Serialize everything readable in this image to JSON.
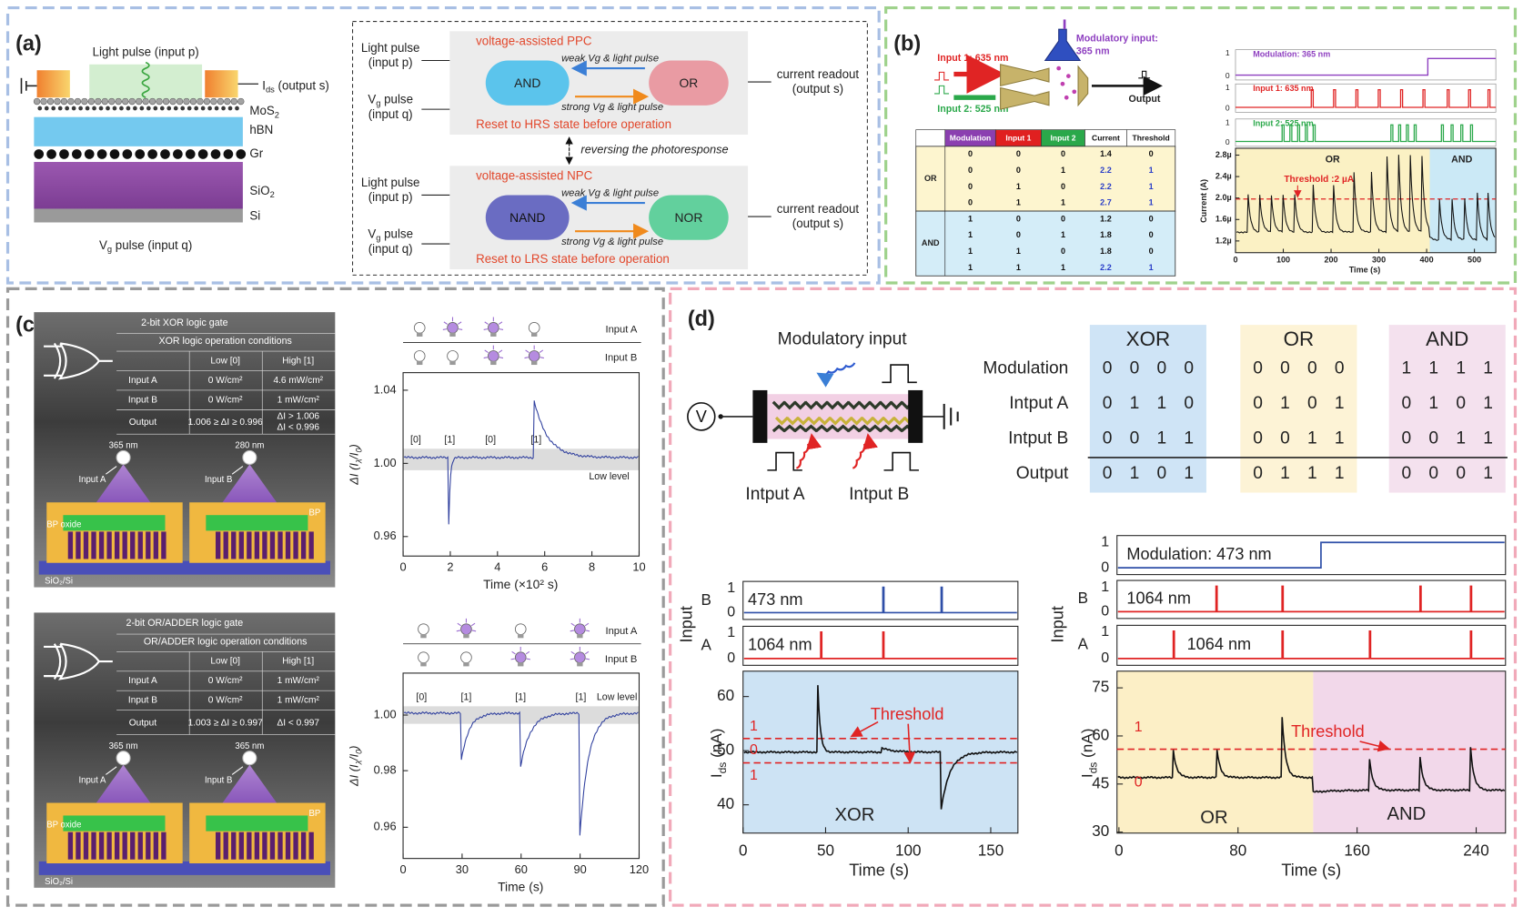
{
  "a": {
    "label": "(a)",
    "light": "Light pulse (input p)",
    "ids": [
      "I",
      "ds",
      " (output s)"
    ],
    "layers": [
      [
        "MoS",
        "2"
      ],
      "hBN",
      "Gr",
      [
        "SiO",
        "2"
      ],
      "Si"
    ],
    "vg": [
      "V",
      "g",
      " pulse (input q)"
    ],
    "in_p": [
      "Light pulse",
      "(input p)"
    ],
    "in_q": [
      [
        "V",
        "g",
        " pulse"
      ],
      "(input q)"
    ],
    "readout": [
      "current readout",
      "(output s)"
    ],
    "ppc": {
      "title": "voltage-assisted PPC",
      "left": "AND",
      "right": "OR",
      "weak": "weak Vg & light pulse",
      "strong": "strong Vg & light pulse",
      "reset": "Reset to HRS state before operation"
    },
    "npc": {
      "title": "voltage-assisted NPC",
      "left": "NAND",
      "right": "NOR",
      "weak": "weak Vg & light pulse",
      "strong": "strong Vg & light pulse",
      "reset": "Reset to LRS state before operation"
    },
    "reverse": "reversing the photoresponse"
  },
  "b": {
    "label": "(b)",
    "in1": "Input 1: 635 nm",
    "in2": "Input 2: 525 nm",
    "mod": [
      "Modulatory input:",
      "365 nm"
    ],
    "output": "Output",
    "table": {
      "header": [
        "Modulation",
        "Input 1",
        "Input 2",
        "Current",
        "Threshold"
      ],
      "groups": [
        {
          "name": "OR",
          "rows": [
            [
              0,
              0,
              0,
              1.4,
              0
            ],
            [
              0,
              0,
              1,
              2.2,
              1
            ],
            [
              0,
              1,
              0,
              2.2,
              1
            ],
            [
              0,
              1,
              1,
              2.7,
              1
            ]
          ]
        },
        {
          "name": "AND",
          "rows": [
            [
              1,
              0,
              0,
              1.2,
              0
            ],
            [
              1,
              0,
              1,
              1.8,
              0
            ],
            [
              1,
              1,
              0,
              1.8,
              0
            ],
            [
              1,
              1,
              1,
              2.2,
              1
            ]
          ]
        }
      ]
    },
    "plot": {
      "traces": [
        "Modulation: 365 nm",
        "Input 1: 635 nm",
        "Input 2: 525 nm"
      ],
      "trace_ticks": [
        1,
        0
      ],
      "regions": [
        "OR",
        "AND"
      ],
      "threshold": "Threshold :2 µA",
      "ylabel": "Current (A)",
      "yticks": [
        "1.2µ",
        "1.6µ",
        "2.0µ",
        "2.4µ",
        "2.8µ"
      ],
      "xlabel": "Time (s)",
      "xticks": [
        0,
        100,
        200,
        300,
        400,
        500
      ]
    }
  },
  "c": {
    "label": "(c)",
    "panels": [
      {
        "title": "2-bit XOR logic gate",
        "sub": "XOR logic operation conditions",
        "cols": [
          "Low [0]",
          "High [1]"
        ],
        "rows": [
          [
            "Input A",
            "0 W/cm²",
            "4.6 mW/cm²"
          ],
          [
            "Input B",
            "0 W/cm²",
            "1 mW/cm²"
          ],
          [
            "Output",
            "1.006 ≥ ΔI ≥ 0.996",
            [
              "ΔI > 1.006",
              "ΔI < 0.996"
            ]
          ]
        ],
        "lamps": [
          [
            "365 nm",
            "Input A"
          ],
          [
            "280 nm",
            "Input B"
          ]
        ],
        "labels": [
          "BP oxide",
          "BP",
          "SiO₂/Si"
        ]
      },
      {
        "title": "2-bit OR/ADDER logic gate",
        "sub": "OR/ADDER logic operation conditions",
        "cols": [
          "Low [0]",
          "High [1]"
        ],
        "rows": [
          [
            "Input A",
            "0 W/cm²",
            "1 mW/cm²"
          ],
          [
            "Input B",
            "0 W/cm²",
            "1 mW/cm²"
          ],
          [
            "Output",
            "1.003 ≥ ΔI ≥ 0.997",
            "ΔI < 0.997"
          ]
        ],
        "lamps": [
          [
            "365 nm",
            "Input A"
          ],
          [
            "365 nm",
            "Input B"
          ]
        ],
        "labels": [
          "BP oxide",
          "BP",
          "SiO₂/Si"
        ]
      }
    ],
    "plots": [
      {
        "inputs": [
          "Input A",
          "Input B"
        ],
        "ylabel": [
          "ΔI (I",
          "λ",
          "/I",
          "0",
          ")"
        ],
        "yticks": [
          "0.96",
          "1.00",
          "1.04"
        ],
        "xticks": [
          0,
          2,
          4,
          6,
          8,
          10
        ],
        "xlabel": "Time (×10² s)",
        "states": [
          "[0]",
          "[1]",
          "[0]",
          "[1]"
        ],
        "level": "Low level"
      },
      {
        "inputs": [
          "Input A",
          "Input B"
        ],
        "ylabel": [
          "ΔI (I",
          "λ",
          "/I",
          "0",
          ")"
        ],
        "yticks": [
          "0.96",
          "0.98",
          "1.00"
        ],
        "xticks": [
          0,
          30,
          60,
          90,
          120
        ],
        "xlabel": "Time (s)",
        "states": [
          "[0]",
          "[1]",
          "[1]",
          "[1]"
        ],
        "level": "Low level"
      }
    ]
  },
  "d": {
    "label": "(d)",
    "mod": "Modulatory input",
    "inA": "Intput A",
    "inB": "Intput B",
    "table": {
      "rows": [
        "Modulation",
        "Intput A",
        "Intput B",
        "Output"
      ],
      "gates": [
        {
          "name": "XOR",
          "color": "#cfe4f6",
          "values": [
            [
              0,
              0,
              0,
              0
            ],
            [
              0,
              1,
              1,
              0
            ],
            [
              0,
              0,
              1,
              1
            ],
            [
              0,
              1,
              0,
              1
            ]
          ]
        },
        {
          "name": "OR",
          "color": "#fdf3d6",
          "values": [
            [
              0,
              0,
              0,
              0
            ],
            [
              0,
              1,
              0,
              1
            ],
            [
              0,
              0,
              1,
              1
            ],
            [
              0,
              1,
              1,
              1
            ]
          ]
        },
        {
          "name": "AND",
          "color": "#f4e1ee",
          "values": [
            [
              1,
              1,
              1,
              1
            ],
            [
              0,
              1,
              0,
              1
            ],
            [
              0,
              0,
              1,
              1
            ],
            [
              0,
              0,
              0,
              1
            ]
          ]
        }
      ]
    },
    "left": {
      "input": "Input",
      "chan": [
        "B",
        "A"
      ],
      "trace_b": "473 nm",
      "trace_a": "1064 nm",
      "ticks": [
        1,
        0
      ],
      "yticks": [
        40,
        50,
        60
      ],
      "xticks": [
        0,
        50,
        100,
        150
      ],
      "xlabel": "Time (s)",
      "ylabel": [
        "I",
        "ds",
        " (nA)"
      ],
      "threshold": "Threshold",
      "levels": [
        "1",
        "0",
        "1"
      ],
      "gate": "XOR"
    },
    "right": {
      "input": "Input",
      "chan": [
        "B",
        "A"
      ],
      "mod": "Modulation:  473 nm",
      "trace_b": "1064 nm",
      "trace_a": "1064 nm",
      "ticks": [
        1,
        0
      ],
      "yticks": [
        30,
        45,
        60,
        75
      ],
      "xticks": [
        0,
        80,
        160,
        240
      ],
      "xlabel": "Time (s)",
      "ylabel": [
        "I",
        "ds",
        " (nA)"
      ],
      "threshold": "Threshold",
      "levels": [
        "1",
        "0"
      ],
      "gates": [
        "OR",
        "AND"
      ]
    }
  }
}
